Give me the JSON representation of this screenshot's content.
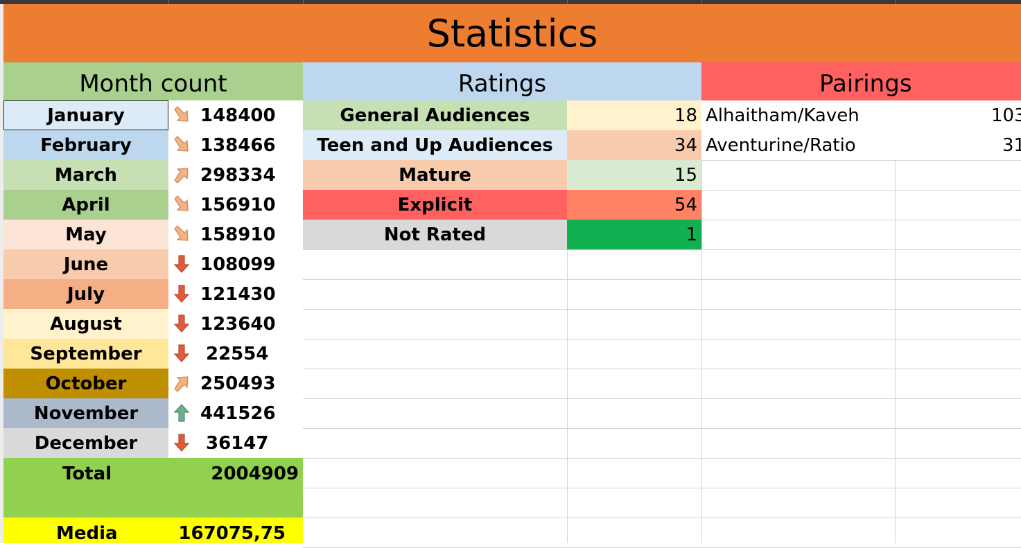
{
  "title": "Statistics",
  "sections": {
    "months": "Month count",
    "ratings": "Ratings",
    "pairings": "Pairings"
  },
  "months": [
    {
      "name": "January",
      "value": "148400",
      "trend": "down-right",
      "bg": "#ddebf7"
    },
    {
      "name": "February",
      "value": "138466",
      "trend": "down-right",
      "bg": "#bdd7ee"
    },
    {
      "name": "March",
      "value": "298334",
      "trend": "up-right",
      "bg": "#c6e0b4"
    },
    {
      "name": "April",
      "value": "156910",
      "trend": "down-right",
      "bg": "#a9d08e"
    },
    {
      "name": "May",
      "value": "158910",
      "trend": "down-right",
      "bg": "#fce4d6"
    },
    {
      "name": "June",
      "value": "108099",
      "trend": "down",
      "bg": "#f8cbad"
    },
    {
      "name": "July",
      "value": "121430",
      "trend": "down",
      "bg": "#f4b084"
    },
    {
      "name": "August",
      "value": "123640",
      "trend": "down",
      "bg": "#fff2cc"
    },
    {
      "name": "September",
      "value": "22554",
      "trend": "down",
      "bg": "#ffe699"
    },
    {
      "name": "October",
      "value": "250493",
      "trend": "up-right",
      "bg": "#bf8f00"
    },
    {
      "name": "November",
      "value": "441526",
      "trend": "up",
      "bg": "#acb9ca"
    },
    {
      "name": "December",
      "value": "36147",
      "trend": "down",
      "bg": "#d9d9d9"
    }
  ],
  "total": {
    "label": "Total",
    "value": "2004909",
    "bg": "#92d050"
  },
  "media": {
    "label": "Media",
    "value": "167075,75",
    "bg": "#ffff00"
  },
  "ratings": [
    {
      "name": "General Audiences",
      "value": "18",
      "name_bg": "#c6e0b4",
      "value_bg": "#fff2cc"
    },
    {
      "name": "Teen and Up Audiences",
      "value": "34",
      "name_bg": "#ddebf7",
      "value_bg": "#f8cbad"
    },
    {
      "name": "Mature",
      "value": "15",
      "name_bg": "#f8cbad",
      "value_bg": "#d9ead3"
    },
    {
      "name": "Explicit",
      "value": "54",
      "name_bg": "#ff6161",
      "value_bg": "#ff8264"
    },
    {
      "name": "Not Rated",
      "value": "1",
      "name_bg": "#d9d9d9",
      "value_bg": "#12b050"
    }
  ],
  "pairings": [
    {
      "name": "Alhaitham/Kaveh",
      "value": "103"
    },
    {
      "name": "Aventurine/Ratio",
      "value": "31"
    }
  ],
  "colors": {
    "title_bg": "#ed7d31",
    "months_header_bg": "#a9d08e",
    "ratings_header_bg": "#bdd7ee",
    "pairings_header_bg": "#ff6161",
    "arrow_orange": "#f4b183",
    "arrow_red": "#e05a3c",
    "arrow_green": "#70ad8f"
  }
}
